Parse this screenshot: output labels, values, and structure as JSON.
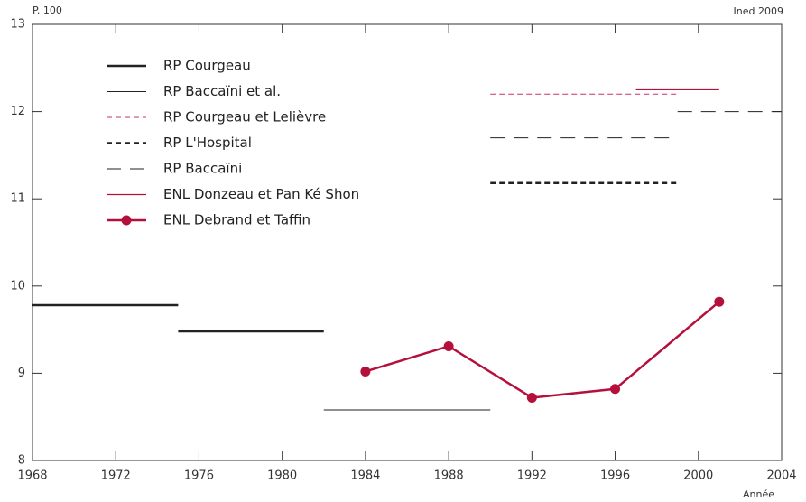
{
  "chart_data": {
    "type": "line",
    "y_label": "P. 100",
    "x_label": "Année",
    "source": "Ined 2009",
    "xlim": [
      1968,
      2004
    ],
    "xticks": [
      1968,
      1972,
      1976,
      1980,
      1984,
      1988,
      1992,
      1996,
      2000,
      2004
    ],
    "ylim": [
      8,
      13
    ],
    "yticks": [
      8,
      9,
      10,
      11,
      12,
      13
    ],
    "legend": "upper left",
    "series": [
      {
        "name": "RP Courgeau",
        "color": "#222222",
        "style": "solid",
        "width": 2.5,
        "marker": false,
        "x": [
          1968,
          1975,
          1975,
          1975,
          1982
        ],
        "values": [
          9.78,
          9.78,
          null,
          9.48,
          9.48
        ]
      },
      {
        "name": "RP Baccaïni et al.",
        "color": "#222222",
        "style": "solid",
        "width": 1,
        "marker": false,
        "x": [
          1982,
          1990
        ],
        "values": [
          8.58,
          8.58
        ]
      },
      {
        "name": "RP Courgeau et Lelièvre",
        "color": "#c8306a",
        "style": "dashed",
        "width": 1,
        "marker": false,
        "x": [
          1990,
          1999
        ],
        "values": [
          12.2,
          12.2
        ]
      },
      {
        "name": "RP L'Hospital",
        "color": "#222222",
        "style": "dashed",
        "width": 2.5,
        "marker": false,
        "x": [
          1990,
          1999
        ],
        "values": [
          11.18,
          11.18
        ]
      },
      {
        "name": "RP Baccaïni",
        "color": "#222222",
        "style": "longdash",
        "width": 1,
        "marker": false,
        "x": [
          1990,
          1999,
          1999,
          1999,
          2004
        ],
        "values": [
          11.7,
          11.7,
          null,
          12.0,
          12.0
        ]
      },
      {
        "name": "ENL Donzeau et Pan Ké Shon",
        "color": "#b5103c",
        "style": "solid",
        "width": 1.2,
        "marker": false,
        "x": [
          1997,
          2001
        ],
        "values": [
          12.25,
          12.25
        ]
      },
      {
        "name": "ENL Debrand et Taffin",
        "color": "#b5103c",
        "style": "solid",
        "width": 2.5,
        "marker": true,
        "x": [
          1984,
          1988,
          1992,
          1996,
          2001
        ],
        "values": [
          9.02,
          9.31,
          8.72,
          8.82,
          9.82
        ]
      }
    ]
  }
}
